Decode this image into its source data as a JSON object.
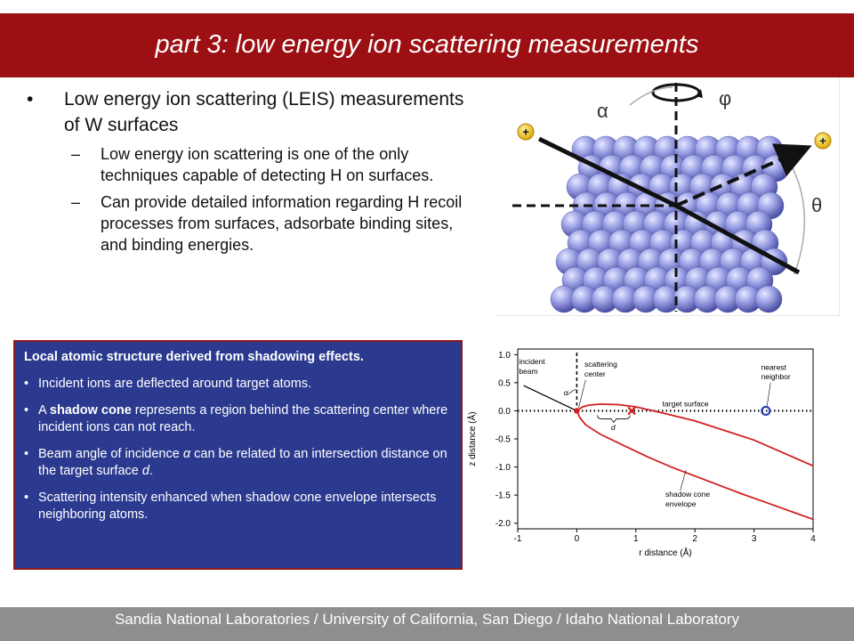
{
  "slide": {
    "title": "part 3: low energy ion scattering measurements",
    "footer": "Sandia National Laboratories / University of California, San Diego / Idaho National Laboratory"
  },
  "bullets": {
    "main": {
      "marker": "•",
      "text": "Low energy ion scattering (LEIS) measurements of W surfaces"
    },
    "subs": [
      {
        "marker": "–",
        "text": "Low energy ion scattering is one of the only techniques capable of detecting H on surfaces."
      },
      {
        "marker": "–",
        "text": "Can provide detailed information regarding H recoil processes from surfaces, adsorbate binding sites, and binding energies."
      }
    ]
  },
  "diagram": {
    "alpha_label": "α",
    "phi_label": "φ",
    "theta_label": "θ",
    "ion_symbol": "+",
    "ion_color": "#f0c419",
    "atom_color": "#8b90dc"
  },
  "shadow_box": {
    "heading": "Local atomic structure derived from shadowing effects.",
    "items": [
      {
        "marker": "•",
        "parts": [
          {
            "t": "Incident ions are deflected around target atoms.",
            "s": "n"
          }
        ]
      },
      {
        "marker": "•",
        "parts": [
          {
            "t": "A ",
            "s": "n"
          },
          {
            "t": "shadow cone",
            "s": "b"
          },
          {
            "t": " represents a region behind the scattering center where incident ions can not reach.",
            "s": "n"
          }
        ]
      },
      {
        "marker": "•",
        "parts": [
          {
            "t": "Beam angle of incidence ",
            "s": "n"
          },
          {
            "t": "α",
            "s": "i"
          },
          {
            "t": " can be related to an intersection distance on the target surface ",
            "s": "n"
          },
          {
            "t": "d",
            "s": "i"
          },
          {
            "t": ".",
            "s": "n"
          }
        ]
      },
      {
        "marker": "•",
        "parts": [
          {
            "t": "Scattering intensity enhanced when shadow cone envelope intersects neighboring atoms.",
            "s": "n"
          }
        ]
      }
    ],
    "bg_color": "#2b3a8f",
    "border_color": "#8b1a1a"
  },
  "chart_data": {
    "type": "line",
    "xlabel": "r distance (Å)",
    "ylabel": "z distance (Å)",
    "xlim": [
      -1.0,
      4.0
    ],
    "ylim": [
      -2.1,
      1.1
    ],
    "xticks": [
      "-1",
      "0",
      "1",
      "2",
      "3",
      "4"
    ],
    "yticks": [
      "1.0",
      "0.5",
      "0.0",
      "-0.5",
      "-1.0",
      "-1.5",
      "-2.0"
    ],
    "series": [
      {
        "x": [
          0.0,
          0.1,
          0.2,
          0.4,
          0.7,
          1.0,
          1.5,
          2.0,
          2.5,
          3.0,
          3.5,
          4.0
        ],
        "y": [
          0.0,
          0.07,
          0.1,
          0.12,
          0.11,
          0.07,
          -0.05,
          -0.18,
          -0.35,
          -0.52,
          -0.75,
          -0.98
        ]
      },
      {
        "x": [
          0.0,
          0.05,
          0.15,
          0.4,
          0.8,
          1.2,
          1.6,
          2.0,
          2.4,
          2.8,
          3.2,
          3.6,
          4.0
        ],
        "y": [
          0.0,
          -0.12,
          -0.25,
          -0.42,
          -0.62,
          -0.82,
          -1.0,
          -1.16,
          -1.32,
          -1.48,
          -1.63,
          -1.78,
          -1.93
        ]
      }
    ],
    "incident_beam": {
      "x": [
        -0.9,
        0.0
      ],
      "y": [
        0.45,
        0.0
      ]
    },
    "surface_line_y": 0.0,
    "scattering_center": {
      "x": 0.0,
      "y": 0.0
    },
    "intersection_marker": {
      "x": 0.93,
      "y": 0.0
    },
    "nearest_neighbor": {
      "x": 3.2,
      "y": 0.0
    },
    "annotations": {
      "incident_beam": "incident beam",
      "scattering_center": "scattering center",
      "nearest_neighbor": "nearest neighbor",
      "target_surface": "target surface",
      "shadow_cone_envelope": "shadow cone envelope",
      "alpha": "α",
      "d": "d"
    },
    "colors": {
      "curve": "#d42020",
      "neighbor": "#2a3fb0",
      "axis": "#000000"
    }
  }
}
